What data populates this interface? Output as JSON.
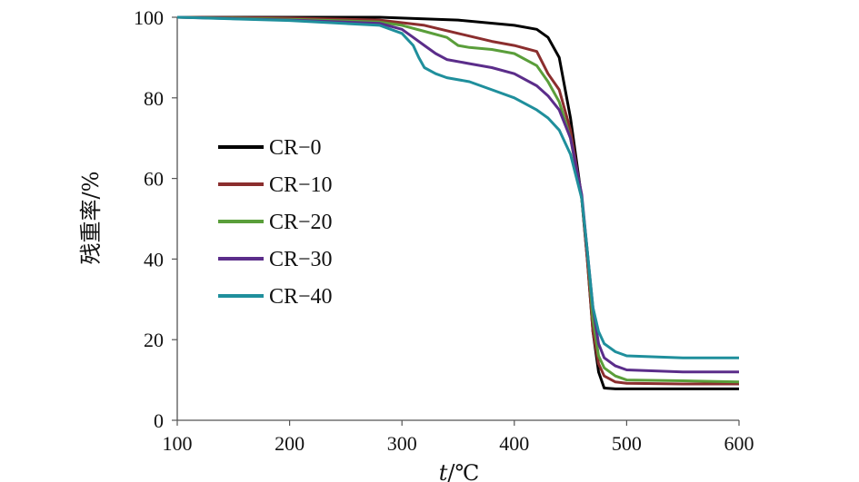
{
  "chart_data": {
    "type": "line",
    "xlabel_var": "t",
    "xlabel_unit": "/℃",
    "ylabel": "残重率/%",
    "xlim": [
      100,
      600
    ],
    "ylim": [
      0,
      100
    ],
    "xticks": [
      "100",
      "200",
      "300",
      "400",
      "500",
      "600"
    ],
    "yticks": [
      "0",
      "20",
      "40",
      "60",
      "80",
      "100"
    ],
    "grid": false,
    "legend_position": "center-left",
    "series": [
      {
        "name": "CR−0",
        "color": "#000000",
        "x": [
          100,
          200,
          280,
          350,
          400,
          420,
          430,
          440,
          450,
          460,
          465,
          470,
          475,
          480,
          490,
          500,
          550,
          600
        ],
        "y": [
          100,
          100,
          100,
          99.3,
          98,
          97,
          95,
          90,
          75,
          55,
          40,
          22,
          12,
          8,
          7.8,
          7.8,
          7.8,
          7.8
        ]
      },
      {
        "name": "CR−10",
        "color": "#8b2e2e",
        "x": [
          100,
          200,
          280,
          320,
          350,
          380,
          400,
          420,
          430,
          440,
          450,
          460,
          465,
          470,
          475,
          480,
          490,
          500,
          550,
          600
        ],
        "y": [
          100,
          99.8,
          99.3,
          98,
          96,
          94,
          93,
          91.5,
          86,
          82,
          72,
          55,
          40,
          22,
          14,
          11,
          9.5,
          9.2,
          9,
          9
        ]
      },
      {
        "name": "CR−20",
        "color": "#5a9e3a",
        "x": [
          100,
          200,
          280,
          300,
          320,
          340,
          350,
          360,
          380,
          400,
          420,
          430,
          440,
          450,
          460,
          465,
          470,
          475,
          480,
          490,
          500,
          550,
          600
        ],
        "y": [
          100,
          99.5,
          98.8,
          98,
          96.5,
          95,
          93,
          92.5,
          92,
          91,
          88,
          84,
          79,
          70,
          55,
          42,
          25,
          16,
          13,
          11,
          10,
          9.8,
          9.5
        ]
      },
      {
        "name": "CR−30",
        "color": "#5b2d8a",
        "x": [
          100,
          200,
          280,
          300,
          310,
          320,
          330,
          340,
          360,
          380,
          400,
          420,
          430,
          440,
          450,
          460,
          465,
          470,
          475,
          480,
          490,
          500,
          550,
          600
        ],
        "y": [
          100,
          99.3,
          98.5,
          97,
          95,
          93,
          91,
          89.5,
          88.5,
          87.5,
          86,
          83,
          80.5,
          77,
          70,
          56,
          42,
          28,
          19,
          15.5,
          13.5,
          12.5,
          12,
          12
        ]
      },
      {
        "name": "CR−40",
        "color": "#1f8f9c",
        "x": [
          100,
          200,
          280,
          300,
          310,
          315,
          320,
          330,
          340,
          360,
          380,
          400,
          420,
          430,
          440,
          450,
          460,
          465,
          470,
          475,
          480,
          490,
          500,
          550,
          600
        ],
        "y": [
          100,
          99.2,
          98,
          96,
          93,
          90,
          87.5,
          86,
          85,
          84,
          82,
          80,
          77,
          75,
          72,
          66,
          55,
          42,
          28,
          22,
          19,
          17,
          16,
          15.5,
          15.5
        ]
      }
    ]
  }
}
